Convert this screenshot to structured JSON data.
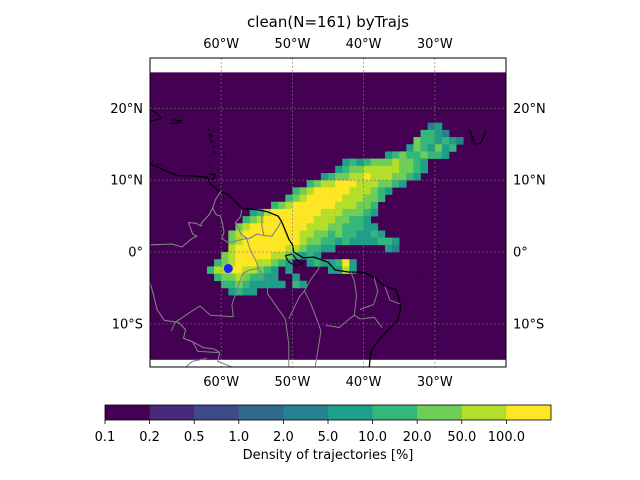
{
  "title": "clean(N=161) byTrajs",
  "map": {
    "extent": {
      "lon": [
        -70,
        -20
      ],
      "lat": [
        -16,
        27
      ]
    },
    "lon_ticks": [
      {
        "value": -60,
        "label": "60°W"
      },
      {
        "value": -50,
        "label": "50°W"
      },
      {
        "value": -40,
        "label": "40°W"
      },
      {
        "value": -30,
        "label": "30°W"
      }
    ],
    "lat_ticks": [
      {
        "value": 20,
        "label": "20°N"
      },
      {
        "value": 10,
        "label": "10°N"
      },
      {
        "value": 0,
        "label": "0°"
      },
      {
        "value": -10,
        "label": "10°S"
      }
    ],
    "density_grid_lat_range": [
      -15,
      25
    ],
    "source_marker": {
      "lon": -59,
      "lat": -2.3,
      "color": "#1f1fff"
    }
  },
  "colorbar": {
    "label": "Density of trajectories [%]",
    "ticks": [
      "0.1",
      "0.2",
      "0.5",
      "1.0",
      "2.0",
      "5.0",
      "10.0",
      "20.0",
      "50.0",
      "100.0"
    ],
    "colors": [
      "#440154",
      "#482878",
      "#3e4a89",
      "#31688e",
      "#26828e",
      "#1f9e89",
      "#35b779",
      "#6ece58",
      "#b5de2b",
      "#fde725"
    ]
  },
  "chart_data": {
    "type": "heatmap",
    "title": "clean(N=161) byTrajs",
    "x_axis": "longitude",
    "y_axis": "latitude",
    "xlim": [
      -70,
      -20
    ],
    "ylim": [
      -16,
      27
    ],
    "grid": "dotted",
    "colorbar_label": "Density of trajectories [%]",
    "levels": [
      0.1,
      0.2,
      0.5,
      1.0,
      2.0,
      5.0,
      10.0,
      20.0,
      50.0,
      100.0
    ],
    "cell_size_deg": 1,
    "cells": [
      [
        -31,
        17,
        4
      ],
      [
        -30,
        17,
        5
      ],
      [
        -32,
        16,
        6
      ],
      [
        -31,
        16,
        6
      ],
      [
        -30,
        16,
        5
      ],
      [
        -29,
        16,
        4
      ],
      [
        -33,
        15,
        7
      ],
      [
        -32,
        15,
        6
      ],
      [
        -31,
        15,
        6
      ],
      [
        -30,
        15,
        5
      ],
      [
        -29,
        15,
        6
      ],
      [
        -28,
        15,
        5
      ],
      [
        -27,
        15,
        4
      ],
      [
        -34,
        14,
        5
      ],
      [
        -33,
        14,
        7
      ],
      [
        -32,
        14,
        6
      ],
      [
        -31,
        14,
        5
      ],
      [
        -30,
        14,
        7
      ],
      [
        -29,
        14,
        5
      ],
      [
        -28,
        14,
        6
      ],
      [
        -37,
        13,
        5
      ],
      [
        -36,
        13,
        6
      ],
      [
        -35,
        13,
        7
      ],
      [
        -34,
        13,
        6
      ],
      [
        -33,
        13,
        6
      ],
      [
        -32,
        13,
        7
      ],
      [
        -31,
        13,
        6
      ],
      [
        -30,
        13,
        6
      ],
      [
        -29,
        13,
        5
      ],
      [
        -43,
        12,
        5
      ],
      [
        -42,
        12,
        6
      ],
      [
        -41,
        12,
        5
      ],
      [
        -40,
        12,
        6
      ],
      [
        -39,
        12,
        7
      ],
      [
        -38,
        12,
        7
      ],
      [
        -37,
        12,
        7
      ],
      [
        -36,
        12,
        8
      ],
      [
        -35,
        12,
        7
      ],
      [
        -34,
        12,
        7
      ],
      [
        -33,
        12,
        6
      ],
      [
        -32,
        12,
        5
      ],
      [
        -44,
        11,
        5
      ],
      [
        -43,
        11,
        6
      ],
      [
        -42,
        11,
        7
      ],
      [
        -41,
        11,
        7
      ],
      [
        -40,
        11,
        8
      ],
      [
        -39,
        11,
        8
      ],
      [
        -38,
        11,
        8
      ],
      [
        -37,
        11,
        8
      ],
      [
        -36,
        11,
        8
      ],
      [
        -35,
        11,
        7
      ],
      [
        -34,
        11,
        7
      ],
      [
        -33,
        11,
        6
      ],
      [
        -32,
        11,
        5
      ],
      [
        -46,
        10,
        5
      ],
      [
        -45,
        10,
        6
      ],
      [
        -44,
        10,
        7
      ],
      [
        -43,
        10,
        7
      ],
      [
        -42,
        10,
        8
      ],
      [
        -41,
        10,
        8
      ],
      [
        -40,
        10,
        9
      ],
      [
        -39,
        10,
        8
      ],
      [
        -38,
        10,
        8
      ],
      [
        -37,
        10,
        8
      ],
      [
        -36,
        10,
        7
      ],
      [
        -35,
        10,
        7
      ],
      [
        -34,
        10,
        6
      ],
      [
        -33,
        10,
        5
      ],
      [
        -48,
        9,
        6
      ],
      [
        -47,
        9,
        7
      ],
      [
        -46,
        9,
        8
      ],
      [
        -45,
        9,
        8
      ],
      [
        -44,
        9,
        9
      ],
      [
        -43,
        9,
        9
      ],
      [
        -42,
        9,
        9
      ],
      [
        -41,
        9,
        8
      ],
      [
        -40,
        9,
        8
      ],
      [
        -39,
        9,
        8
      ],
      [
        -38,
        9,
        7
      ],
      [
        -37,
        9,
        7
      ],
      [
        -36,
        9,
        6
      ],
      [
        -35,
        9,
        5
      ],
      [
        -50,
        8,
        6
      ],
      [
        -49,
        8,
        7
      ],
      [
        -48,
        8,
        8
      ],
      [
        -47,
        8,
        9
      ],
      [
        -46,
        8,
        9
      ],
      [
        -45,
        8,
        9
      ],
      [
        -44,
        8,
        9
      ],
      [
        -43,
        8,
        9
      ],
      [
        -42,
        8,
        8
      ],
      [
        -41,
        8,
        8
      ],
      [
        -40,
        8,
        8
      ],
      [
        -39,
        8,
        7
      ],
      [
        -38,
        8,
        6
      ],
      [
        -37,
        8,
        5
      ],
      [
        -51,
        7,
        6
      ],
      [
        -50,
        7,
        7
      ],
      [
        -49,
        7,
        8
      ],
      [
        -48,
        7,
        9
      ],
      [
        -47,
        7,
        9
      ],
      [
        -46,
        7,
        9
      ],
      [
        -45,
        7,
        9
      ],
      [
        -44,
        7,
        9
      ],
      [
        -43,
        7,
        8
      ],
      [
        -42,
        7,
        8
      ],
      [
        -41,
        7,
        8
      ],
      [
        -40,
        7,
        7
      ],
      [
        -39,
        7,
        7
      ],
      [
        -38,
        7,
        6
      ],
      [
        -53,
        6,
        6
      ],
      [
        -52,
        6,
        7
      ],
      [
        -51,
        6,
        8
      ],
      [
        -50,
        6,
        9
      ],
      [
        -49,
        6,
        9
      ],
      [
        -48,
        6,
        9
      ],
      [
        -47,
        6,
        9
      ],
      [
        -46,
        6,
        9
      ],
      [
        -45,
        6,
        9
      ],
      [
        -44,
        6,
        8
      ],
      [
        -43,
        6,
        8
      ],
      [
        -42,
        6,
        8
      ],
      [
        -41,
        6,
        7
      ],
      [
        -40,
        6,
        7
      ],
      [
        -39,
        6,
        6
      ],
      [
        -56,
        5,
        5
      ],
      [
        -55,
        5,
        6
      ],
      [
        -54,
        5,
        8
      ],
      [
        -53,
        5,
        9
      ],
      [
        -52,
        5,
        9
      ],
      [
        -51,
        5,
        9
      ],
      [
        -50,
        5,
        9
      ],
      [
        -49,
        5,
        9
      ],
      [
        -48,
        5,
        9
      ],
      [
        -47,
        5,
        9
      ],
      [
        -46,
        5,
        8
      ],
      [
        -45,
        5,
        8
      ],
      [
        -44,
        5,
        8
      ],
      [
        -43,
        5,
        7
      ],
      [
        -42,
        5,
        7
      ],
      [
        -41,
        5,
        7
      ],
      [
        -40,
        5,
        6
      ],
      [
        -39,
        5,
        5
      ],
      [
        -57,
        4,
        6
      ],
      [
        -56,
        4,
        7
      ],
      [
        -55,
        4,
        8
      ],
      [
        -54,
        4,
        9
      ],
      [
        -53,
        4,
        9
      ],
      [
        -52,
        4,
        9
      ],
      [
        -51,
        4,
        9
      ],
      [
        -50,
        4,
        9
      ],
      [
        -49,
        4,
        9
      ],
      [
        -48,
        4,
        9
      ],
      [
        -47,
        4,
        8
      ],
      [
        -46,
        4,
        8
      ],
      [
        -45,
        4,
        8
      ],
      [
        -44,
        4,
        7
      ],
      [
        -43,
        4,
        7
      ],
      [
        -42,
        4,
        6
      ],
      [
        -41,
        4,
        6
      ],
      [
        -40,
        4,
        5
      ],
      [
        -58,
        3,
        7
      ],
      [
        -57,
        3,
        8
      ],
      [
        -56,
        3,
        9
      ],
      [
        -55,
        3,
        9
      ],
      [
        -54,
        3,
        9
      ],
      [
        -53,
        3,
        9
      ],
      [
        -52,
        3,
        9
      ],
      [
        -51,
        3,
        9
      ],
      [
        -50,
        3,
        9
      ],
      [
        -49,
        3,
        9
      ],
      [
        -48,
        3,
        8
      ],
      [
        -47,
        3,
        8
      ],
      [
        -46,
        3,
        8
      ],
      [
        -45,
        3,
        7
      ],
      [
        -44,
        3,
        7
      ],
      [
        -43,
        3,
        6
      ],
      [
        -42,
        3,
        6
      ],
      [
        -41,
        3,
        6
      ],
      [
        -40,
        3,
        5
      ],
      [
        -39,
        3,
        5
      ],
      [
        -59,
        2,
        7
      ],
      [
        -58,
        2,
        8
      ],
      [
        -57,
        2,
        9
      ],
      [
        -56,
        2,
        9
      ],
      [
        -55,
        2,
        9
      ],
      [
        -54,
        2,
        9
      ],
      [
        -53,
        2,
        9
      ],
      [
        -52,
        2,
        9
      ],
      [
        -51,
        2,
        9
      ],
      [
        -50,
        2,
        9
      ],
      [
        -49,
        2,
        8
      ],
      [
        -48,
        2,
        8
      ],
      [
        -47,
        2,
        7
      ],
      [
        -46,
        2,
        7
      ],
      [
        -45,
        2,
        6
      ],
      [
        -44,
        2,
        7
      ],
      [
        -43,
        2,
        6
      ],
      [
        -42,
        2,
        6
      ],
      [
        -41,
        2,
        5
      ],
      [
        -40,
        2,
        5
      ],
      [
        -39,
        2,
        6
      ],
      [
        -38,
        2,
        5
      ],
      [
        -59,
        1,
        7
      ],
      [
        -58,
        1,
        8
      ],
      [
        -57,
        1,
        9
      ],
      [
        -56,
        1,
        9
      ],
      [
        -55,
        1,
        9
      ],
      [
        -54,
        1,
        9
      ],
      [
        -53,
        1,
        9
      ],
      [
        -52,
        1,
        9
      ],
      [
        -51,
        1,
        9
      ],
      [
        -50,
        1,
        9
      ],
      [
        -49,
        1,
        8
      ],
      [
        -48,
        1,
        7
      ],
      [
        -47,
        1,
        7
      ],
      [
        -46,
        1,
        6
      ],
      [
        -45,
        1,
        6
      ],
      [
        -44,
        1,
        5
      ],
      [
        -43,
        1,
        6
      ],
      [
        -42,
        1,
        5
      ],
      [
        -41,
        1,
        5
      ],
      [
        -40,
        1,
        5
      ],
      [
        -39,
        1,
        5
      ],
      [
        -38,
        1,
        6
      ],
      [
        -37,
        1,
        6
      ],
      [
        -36,
        1,
        5
      ],
      [
        -59,
        0,
        8
      ],
      [
        -58,
        0,
        9
      ],
      [
        -57,
        0,
        9
      ],
      [
        -56,
        0,
        9
      ],
      [
        -55,
        0,
        9
      ],
      [
        -54,
        0,
        9
      ],
      [
        -53,
        0,
        9
      ],
      [
        -52,
        0,
        9
      ],
      [
        -51,
        0,
        8
      ],
      [
        -50,
        0,
        8
      ],
      [
        -49,
        0,
        7
      ],
      [
        -48,
        0,
        6
      ],
      [
        -47,
        0,
        6
      ],
      [
        -46,
        0,
        5
      ],
      [
        -45,
        0,
        5
      ],
      [
        -37,
        0,
        5
      ],
      [
        -36,
        0,
        4
      ],
      [
        -60,
        -1,
        7
      ],
      [
        -59,
        -1,
        8
      ],
      [
        -58,
        -1,
        9
      ],
      [
        -57,
        -1,
        9
      ],
      [
        -56,
        -1,
        9
      ],
      [
        -55,
        -1,
        9
      ],
      [
        -54,
        -1,
        9
      ],
      [
        -53,
        -1,
        8
      ],
      [
        -52,
        -1,
        8
      ],
      [
        -51,
        -1,
        7
      ],
      [
        -50,
        -1,
        6
      ],
      [
        -49,
        -1,
        5
      ],
      [
        -48,
        -1,
        6
      ],
      [
        -47,
        -1,
        5
      ],
      [
        -61,
        -2,
        6
      ],
      [
        -60,
        -2,
        7
      ],
      [
        -59,
        -2,
        8
      ],
      [
        -58,
        -2,
        9
      ],
      [
        -57,
        -2,
        9
      ],
      [
        -56,
        -2,
        9
      ],
      [
        -55,
        -2,
        8
      ],
      [
        -54,
        -2,
        8
      ],
      [
        -53,
        -2,
        7
      ],
      [
        -52,
        -2,
        6
      ],
      [
        -51,
        -2,
        5
      ],
      [
        -48,
        -2,
        5
      ],
      [
        -47,
        -2,
        6
      ],
      [
        -46,
        -2,
        5
      ],
      [
        -45,
        -2,
        5
      ],
      [
        -44,
        -2,
        6
      ],
      [
        -43,
        -2,
        9
      ],
      [
        -42,
        -2,
        5
      ],
      [
        -62,
        -3,
        6
      ],
      [
        -61,
        -3,
        8
      ],
      [
        -60,
        -3,
        8
      ],
      [
        -59,
        -3,
        9
      ],
      [
        -58,
        -3,
        9
      ],
      [
        -57,
        -3,
        8
      ],
      [
        -56,
        -3,
        8
      ],
      [
        -55,
        -3,
        7
      ],
      [
        -54,
        -3,
        6
      ],
      [
        -53,
        -3,
        5
      ],
      [
        -51,
        -3,
        5
      ],
      [
        -45,
        -3,
        5
      ],
      [
        -44,
        -3,
        5
      ],
      [
        -43,
        -3,
        8
      ],
      [
        -42,
        -3,
        5
      ],
      [
        -61,
        -4,
        6
      ],
      [
        -60,
        -4,
        7
      ],
      [
        -59,
        -4,
        7
      ],
      [
        -58,
        -4,
        8
      ],
      [
        -57,
        -4,
        7
      ],
      [
        -56,
        -4,
        6
      ],
      [
        -55,
        -4,
        6
      ],
      [
        -54,
        -4,
        5
      ],
      [
        -53,
        -4,
        5
      ],
      [
        -50,
        -4,
        5
      ],
      [
        -60,
        -5,
        6
      ],
      [
        -59,
        -5,
        6
      ],
      [
        -58,
        -5,
        7
      ],
      [
        -57,
        -5,
        6
      ],
      [
        -56,
        -5,
        5
      ],
      [
        -55,
        -5,
        5
      ],
      [
        -54,
        -5,
        5
      ],
      [
        -53,
        -5,
        5
      ],
      [
        -52,
        -5,
        5
      ],
      [
        -50,
        -5,
        6
      ],
      [
        -49,
        -5,
        5
      ],
      [
        -59,
        -6,
        5
      ],
      [
        -58,
        -6,
        6
      ],
      [
        -57,
        -6,
        5
      ],
      [
        -56,
        -6,
        5
      ]
    ]
  }
}
